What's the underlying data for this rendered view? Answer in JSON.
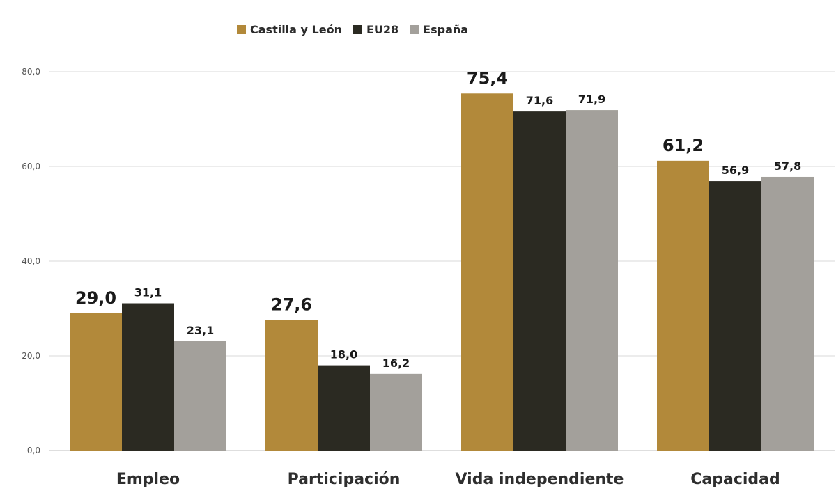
{
  "chart_data": {
    "type": "bar",
    "categories": [
      "Empleo",
      "Participación",
      "Vida independiente",
      "Capacidad"
    ],
    "series": [
      {
        "name": "Castilla y León",
        "color": "#b2893a",
        "values": [
          29.0,
          27.6,
          75.4,
          61.2
        ],
        "labels": [
          "29,0",
          "27,6",
          "75,4",
          "61,2"
        ]
      },
      {
        "name": "EU28",
        "color": "#2b2a22",
        "values": [
          31.1,
          18.0,
          71.6,
          56.9
        ],
        "labels": [
          "31,1",
          "18,0",
          "71,6",
          "56,9"
        ]
      },
      {
        "name": "España",
        "color": "#a3a09b",
        "values": [
          23.1,
          16.2,
          71.9,
          57.8
        ],
        "labels": [
          "23,1",
          "16,2",
          "71,9",
          "57,8"
        ]
      }
    ],
    "y_ticks": [
      {
        "value": 0,
        "label": "0,0"
      },
      {
        "value": 20,
        "label": "20,0"
      },
      {
        "value": 40,
        "label": "40,0"
      },
      {
        "value": 60,
        "label": "60,0"
      },
      {
        "value": 80,
        "label": "80,0"
      }
    ],
    "ylim": [
      0,
      80
    ],
    "grid": true,
    "legend_position": "top-center"
  }
}
